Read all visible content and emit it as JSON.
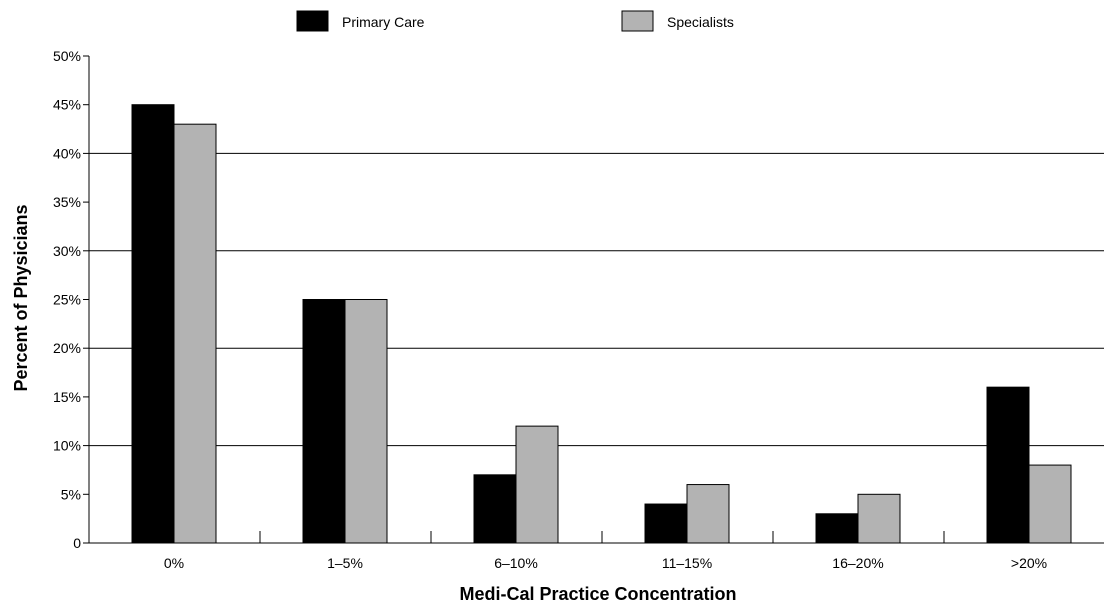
{
  "chart_data": {
    "type": "bar",
    "xlabel": "Medi-Cal Practice Concentration",
    "ylabel": "Percent of Physicians",
    "categories": [
      "0%",
      "1–5%",
      "6–10%",
      "11–15%",
      "16–20%",
      ">20%"
    ],
    "series": [
      {
        "name": "Primary Care",
        "color": "#000000",
        "values": [
          45,
          25,
          7,
          4,
          3,
          16
        ]
      },
      {
        "name": "Specialists",
        "color": "#b3b3b3",
        "values": [
          43,
          25,
          12,
          6,
          5,
          8
        ]
      }
    ],
    "ylim": [
      0,
      50
    ],
    "yticks": [
      0,
      5,
      10,
      15,
      20,
      25,
      30,
      35,
      40,
      45,
      50
    ],
    "ytick_labels": [
      "0",
      "5%",
      "10%",
      "15%",
      "20%",
      "25%",
      "30%",
      "35%",
      "40%",
      "45%",
      "50%"
    ],
    "grid": "horizontal at 10% steps",
    "legend": "top"
  }
}
